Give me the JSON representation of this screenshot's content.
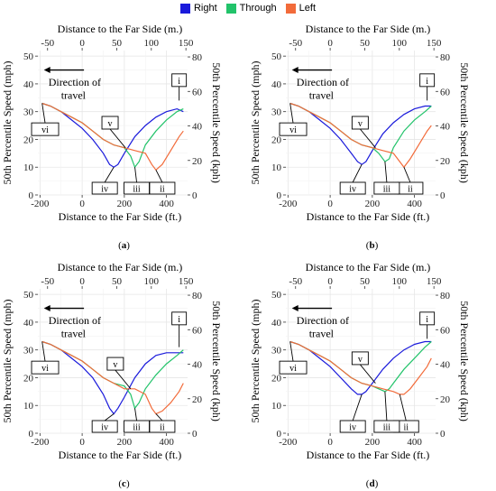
{
  "legend": {
    "items": [
      {
        "label": "Right",
        "color": "#1a1adb"
      },
      {
        "label": "Through",
        "color": "#22c36a"
      },
      {
        "label": "Left",
        "color": "#f26b3a"
      }
    ]
  },
  "axes": {
    "x_bottom_label": "Distance to the Far Side (ft.)",
    "x_top_label": "Distance to the Far Side (m.)",
    "y_left_label": "50th Percentile Speed (mph)",
    "y_right_label": "50th Percentile Speed (kph)",
    "x_bottom_ticks": [
      "-200",
      "0",
      "200",
      "400"
    ],
    "x_top_ticks": [
      "-50",
      "0",
      "50",
      "100",
      "150"
    ],
    "y_left_ticks": [
      "0",
      "10",
      "20",
      "30",
      "40",
      "50"
    ],
    "y_right_ticks": [
      "0",
      "20",
      "40",
      "60",
      "80"
    ]
  },
  "annotations": {
    "direction": [
      "Direction of",
      "travel"
    ],
    "roman": [
      "i",
      "ii",
      "iii",
      "iv",
      "v",
      "vi"
    ]
  },
  "chart_data": [
    {
      "type": "line",
      "panel_label": "a",
      "xlim": [
        -210,
        500
      ],
      "ylim": [
        0,
        52
      ],
      "series": [
        {
          "name": "Right",
          "color": "#1a1adb",
          "x": [
            -190,
            -150,
            -100,
            -50,
            0,
            50,
            100,
            130,
            150,
            170,
            200,
            250,
            300,
            350,
            400,
            450,
            480
          ],
          "y": [
            33,
            32,
            30,
            27,
            24,
            20,
            15,
            11,
            10,
            11,
            15,
            21,
            25,
            28,
            30,
            31,
            30
          ]
        },
        {
          "name": "Through",
          "color": "#22c36a",
          "x": [
            -190,
            -150,
            -100,
            -50,
            0,
            50,
            100,
            150,
            200,
            230,
            250,
            270,
            300,
            350,
            400,
            450,
            480
          ],
          "y": [
            33,
            32,
            30,
            28,
            26,
            23,
            20,
            18,
            17,
            14,
            10,
            12,
            18,
            23,
            27,
            30,
            31
          ]
        },
        {
          "name": "Left",
          "color": "#f26b3a",
          "x": [
            -190,
            -150,
            -100,
            -50,
            0,
            50,
            100,
            150,
            200,
            250,
            300,
            330,
            350,
            380,
            420,
            460,
            480
          ],
          "y": [
            33,
            32,
            30,
            28,
            26,
            23,
            20,
            18,
            17,
            16,
            15,
            11,
            9,
            11,
            16,
            21,
            23
          ]
        }
      ],
      "markers": {
        "i": [
          460,
          34
        ],
        "ii": [
          350,
          9
        ],
        "iii": [
          250,
          10
        ],
        "iv": [
          150,
          10
        ],
        "v": [
          205,
          17
        ],
        "vi": [
          -190,
          33
        ]
      }
    },
    {
      "type": "line",
      "panel_label": "b",
      "xlim": [
        -210,
        500
      ],
      "ylim": [
        0,
        52
      ],
      "series": [
        {
          "name": "Right",
          "color": "#1a1adb",
          "x": [
            -190,
            -150,
            -100,
            -50,
            0,
            50,
            100,
            130,
            150,
            170,
            200,
            250,
            300,
            350,
            400,
            450,
            480
          ],
          "y": [
            33,
            32,
            30,
            27,
            24,
            20,
            15,
            12,
            11,
            12,
            16,
            22,
            26,
            29,
            31,
            32,
            32
          ]
        },
        {
          "name": "Through",
          "color": "#22c36a",
          "x": [
            -190,
            -150,
            -100,
            -50,
            0,
            50,
            100,
            150,
            200,
            230,
            260,
            280,
            300,
            350,
            400,
            450,
            480
          ],
          "y": [
            33,
            32,
            30,
            28,
            26,
            23,
            20,
            18,
            17,
            15,
            12,
            13,
            17,
            23,
            27,
            30,
            32
          ]
        },
        {
          "name": "Left",
          "color": "#f26b3a",
          "x": [
            -190,
            -150,
            -100,
            -50,
            0,
            50,
            100,
            150,
            200,
            250,
            300,
            330,
            350,
            380,
            420,
            460,
            480
          ],
          "y": [
            33,
            32,
            30,
            28,
            26,
            23,
            20,
            18,
            17,
            16,
            15,
            12,
            10,
            13,
            18,
            23,
            25
          ]
        }
      ],
      "markers": {
        "i": [
          460,
          34
        ],
        "ii": [
          350,
          10
        ],
        "iii": [
          260,
          12
        ],
        "iv": [
          150,
          11
        ],
        "v": [
          215,
          17
        ],
        "vi": [
          -190,
          33
        ]
      }
    },
    {
      "type": "line",
      "panel_label": "c",
      "xlim": [
        -210,
        500
      ],
      "ylim": [
        0,
        52
      ],
      "series": [
        {
          "name": "Right",
          "color": "#1a1adb",
          "x": [
            -190,
            -150,
            -100,
            -50,
            0,
            50,
            100,
            130,
            150,
            170,
            200,
            250,
            300,
            350,
            400,
            450,
            480
          ],
          "y": [
            33,
            32,
            30,
            27,
            24,
            20,
            14,
            9,
            7,
            9,
            13,
            20,
            25,
            28,
            29,
            29,
            29
          ]
        },
        {
          "name": "Through",
          "color": "#22c36a",
          "x": [
            -190,
            -150,
            -100,
            -50,
            0,
            50,
            100,
            150,
            200,
            230,
            250,
            270,
            300,
            350,
            400,
            450,
            480
          ],
          "y": [
            33,
            32,
            30,
            28,
            26,
            23,
            20,
            18,
            17,
            14,
            9,
            11,
            16,
            21,
            25,
            28,
            30
          ]
        },
        {
          "name": "Left",
          "color": "#f26b3a",
          "x": [
            -190,
            -150,
            -100,
            -50,
            0,
            50,
            100,
            150,
            200,
            250,
            300,
            330,
            350,
            380,
            420,
            460,
            480
          ],
          "y": [
            33,
            32,
            30,
            28,
            26,
            23,
            20,
            18,
            16,
            16,
            14,
            9,
            7,
            8,
            11,
            15,
            18
          ]
        }
      ],
      "markers": {
        "i": [
          460,
          31
        ],
        "ii": [
          350,
          7
        ],
        "iii": [
          250,
          9
        ],
        "iv": [
          150,
          7
        ],
        "v": [
          230,
          16
        ],
        "vi": [
          -190,
          33
        ]
      }
    },
    {
      "type": "line",
      "panel_label": "d",
      "xlim": [
        -210,
        500
      ],
      "ylim": [
        0,
        52
      ],
      "series": [
        {
          "name": "Right",
          "color": "#1a1adb",
          "x": [
            -190,
            -150,
            -100,
            -50,
            0,
            50,
            100,
            130,
            150,
            170,
            200,
            250,
            300,
            350,
            400,
            450,
            480
          ],
          "y": [
            33,
            32,
            30,
            27,
            24,
            20,
            16,
            14,
            14,
            15,
            18,
            23,
            27,
            30,
            32,
            33,
            33
          ]
        },
        {
          "name": "Through",
          "color": "#22c36a",
          "x": [
            -190,
            -150,
            -100,
            -50,
            0,
            50,
            100,
            150,
            200,
            230,
            260,
            280,
            300,
            350,
            400,
            450,
            480
          ],
          "y": [
            33,
            32,
            30,
            28,
            26,
            23,
            20,
            18,
            17,
            16,
            15,
            16,
            18,
            23,
            27,
            31,
            33
          ]
        },
        {
          "name": "Left",
          "color": "#f26b3a",
          "x": [
            -190,
            -150,
            -100,
            -50,
            0,
            50,
            100,
            150,
            200,
            250,
            300,
            330,
            350,
            380,
            420,
            460,
            480
          ],
          "y": [
            33,
            32,
            30,
            28,
            26,
            23,
            20,
            18,
            17,
            16,
            15,
            14,
            14,
            16,
            20,
            24,
            27
          ]
        }
      ],
      "markers": {
        "i": [
          460,
          34
        ],
        "ii": [
          330,
          14
        ],
        "iii": [
          260,
          15
        ],
        "iv": [
          150,
          14
        ],
        "v": [
          215,
          18
        ],
        "vi": [
          -190,
          33
        ]
      }
    }
  ]
}
